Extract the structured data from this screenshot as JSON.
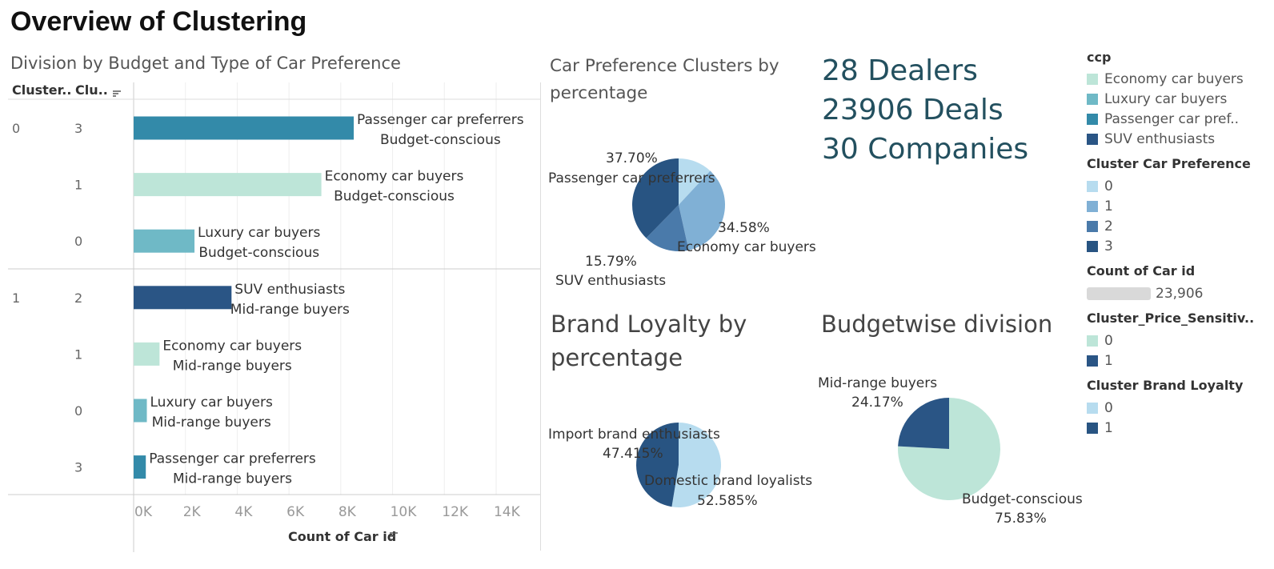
{
  "dashboard": {
    "title": "Overview of Clustering"
  },
  "kpis": {
    "dealers": "28 Dealers",
    "deals": "23906 Deals",
    "companies": "30 Companies"
  },
  "colors": {
    "economy": "#bde5d8",
    "luxury": "#6fb9c6",
    "passenger": "#338aa9",
    "suv": "#2a5585",
    "c0": "#b7dcef",
    "c1": "#80b0d5",
    "c2": "#4a7aaa",
    "c3": "#285482"
  },
  "legends": {
    "ccp": {
      "title": "ccp",
      "items": [
        {
          "label": "Economy car buyers",
          "color": "#bde5d8"
        },
        {
          "label": "Luxury car buyers",
          "color": "#6fb9c6"
        },
        {
          "label": "Passenger car pref..",
          "color": "#338aa9"
        },
        {
          "label": "SUV enthusiasts",
          "color": "#2a5585"
        }
      ]
    },
    "car_pref": {
      "title": "Cluster Car Preference",
      "items": [
        {
          "label": "0",
          "color": "#b7dcef"
        },
        {
          "label": "1",
          "color": "#80b0d5"
        },
        {
          "label": "2",
          "color": "#4a7aaa"
        },
        {
          "label": "3",
          "color": "#285482"
        }
      ]
    },
    "count": {
      "title": "Count of Car id",
      "value": "23,906"
    },
    "price_sens": {
      "title": "Cluster_Price_Sensitiv..",
      "items": [
        {
          "label": "0",
          "color": "#bde5d8"
        },
        {
          "label": "1",
          "color": "#2a5585"
        }
      ]
    },
    "brand": {
      "title": "Cluster Brand Loyalty",
      "items": [
        {
          "label": "0",
          "color": "#b7dcef"
        },
        {
          "label": "1",
          "color": "#285482"
        }
      ]
    }
  },
  "chart_data": [
    {
      "type": "bar",
      "title": "Division by Budget and Type of Car Preference",
      "column_headers": [
        "Cluster..",
        "Clu.."
      ],
      "xlabel": "Count of Car id",
      "xlim": [
        0,
        15700
      ],
      "x_ticks": [
        "0K",
        "2K",
        "4K",
        "6K",
        "8K",
        "10K",
        "12K",
        "14K"
      ],
      "x_tick_values": [
        0,
        2000,
        4000,
        6000,
        8000,
        10000,
        12000,
        14000
      ],
      "groups": [
        "0",
        "1"
      ],
      "rows": [
        {
          "group": "0",
          "cluster": "3",
          "value": 8500,
          "color": "#338aa9",
          "label1": "Passenger car preferrers",
          "label2": "Budget-conscious"
        },
        {
          "group": "0",
          "cluster": "1",
          "value": 7250,
          "color": "#bde5d8",
          "label1": "Economy car buyers",
          "label2": "Budget-conscious"
        },
        {
          "group": "0",
          "cluster": "0",
          "value": 2350,
          "color": "#6fb9c6",
          "label1": "Luxury car buyers",
          "label2": "Budget-conscious"
        },
        {
          "group": "1",
          "cluster": "2",
          "value": 3780,
          "color": "#2a5585",
          "label1": "SUV enthusiasts",
          "label2": "Mid-range buyers"
        },
        {
          "group": "1",
          "cluster": "1",
          "value": 1000,
          "color": "#bde5d8",
          "label1": "Economy car buyers",
          "label2": "Mid-range buyers"
        },
        {
          "group": "1",
          "cluster": "0",
          "value": 510,
          "color": "#6fb9c6",
          "label1": "Luxury car buyers",
          "label2": "Mid-range buyers"
        },
        {
          "group": "1",
          "cluster": "3",
          "value": 470,
          "color": "#338aa9",
          "label1": "Passenger car preferrers",
          "label2": "Mid-range buyers"
        }
      ]
    },
    {
      "type": "pie",
      "title": "Car Preference Clusters by percentage",
      "slices": [
        {
          "cluster": "0",
          "value": 11.93,
          "color": "#b7dcef"
        },
        {
          "cluster": "1",
          "value": 34.58,
          "color": "#80b0d5",
          "label": "Economy car buyers",
          "pct": "34.58%"
        },
        {
          "cluster": "2",
          "value": 15.79,
          "color": "#4a7aaa",
          "label": "SUV enthusiasts",
          "pct": "15.79%"
        },
        {
          "cluster": "3",
          "value": 37.7,
          "color": "#285482",
          "label": "Passenger car preferrers",
          "pct": "37.70%"
        }
      ]
    },
    {
      "type": "pie",
      "title": "Brand Loyalty by percentage",
      "slices": [
        {
          "cluster": "0",
          "value": 52.585,
          "color": "#b7dcef",
          "label": "Domestic brand loyalists",
          "pct": "52.585%"
        },
        {
          "cluster": "1",
          "value": 47.415,
          "color": "#285482",
          "label": "Import brand enthusiasts",
          "pct": "47.415%"
        }
      ]
    },
    {
      "type": "pie",
      "title": "Budgetwise division",
      "slices": [
        {
          "cluster": "0",
          "value": 75.83,
          "color": "#bde5d8",
          "label": "Budget-conscious",
          "pct": "75.83%"
        },
        {
          "cluster": "1",
          "value": 24.17,
          "color": "#2a5585",
          "label": "Mid-range buyers",
          "pct": "24.17%"
        }
      ]
    }
  ]
}
